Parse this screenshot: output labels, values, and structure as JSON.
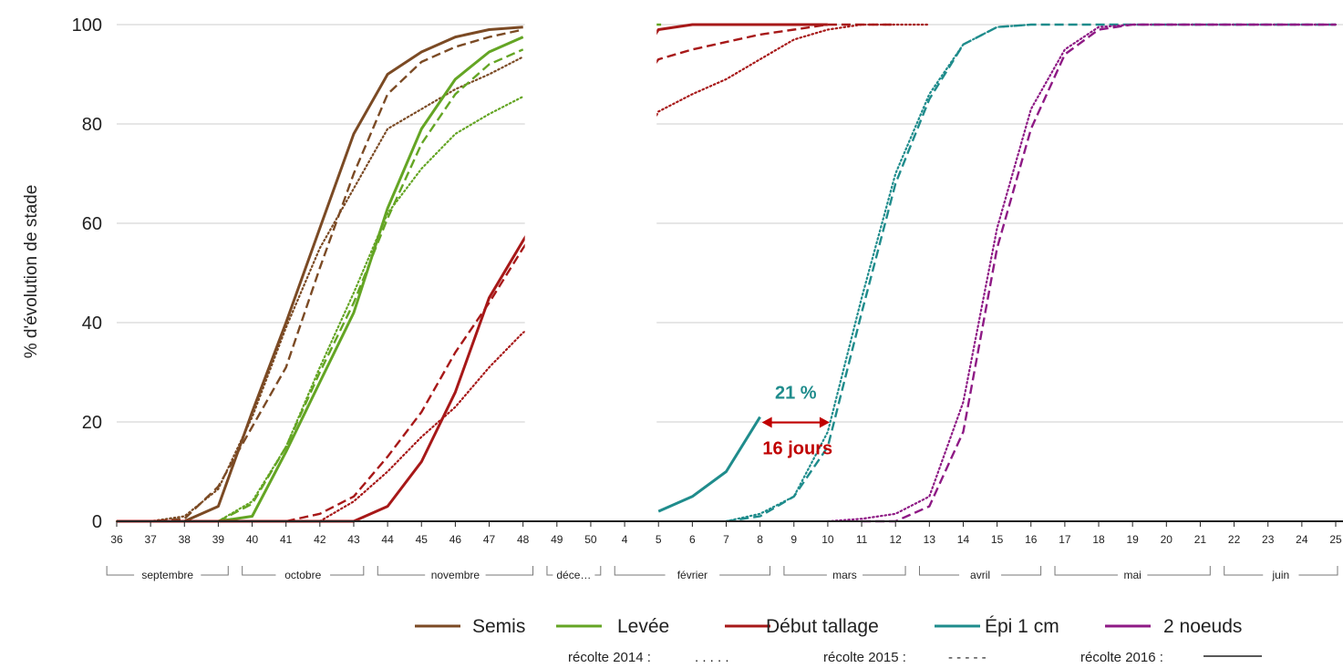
{
  "chart_data": {
    "type": "line",
    "title": "",
    "xlabel": "",
    "ylabel": "% d'évolution de stade",
    "ylim": [
      0,
      100
    ],
    "yticks": [
      0,
      20,
      40,
      60,
      80,
      100
    ],
    "grid": true,
    "x_axis_type": "week-of-year",
    "week_ticks": [
      "36",
      "37",
      "38",
      "39",
      "40",
      "41",
      "42",
      "43",
      "44",
      "45",
      "46",
      "47",
      "48",
      "49",
      "50",
      "4",
      "5",
      "6",
      "7",
      "8",
      "9",
      "10",
      "11",
      "12",
      "13",
      "14",
      "15",
      "16",
      "17",
      "18",
      "19",
      "20",
      "21",
      "22",
      "23",
      "24",
      "25"
    ],
    "months": [
      "septembre",
      "octobre",
      "novembre",
      "déce…",
      "février",
      "mars",
      "avril",
      "mai",
      "juin"
    ],
    "stage_colors": {
      "Semis": "#7b4a24",
      "Levée": "#64a524",
      "Début tallage": "#a71818",
      "Épi 1 cm": "#1f8c8c",
      "2 noeuds": "#8e1a85"
    },
    "year_styles": {
      "récolte 2014": "dotted",
      "récolte 2015": "dashed",
      "récolte 2016": "solid"
    },
    "legend": {
      "stages": [
        "Semis",
        "Levée",
        "Début tallage",
        "Épi 1 cm",
        "2 noeuds"
      ],
      "years": [
        {
          "label": "récolte 2014 :",
          "sample": ". . . . ."
        },
        {
          "label": "récolte 2015 :",
          "sample": "- - - - -"
        },
        {
          "label": "récolte 2016 :",
          "sample": ""
        }
      ],
      "placement": "bottom"
    },
    "series": [
      {
        "stage": "Semis",
        "year": "récolte 2016",
        "x": [
          "36",
          "37",
          "38",
          "39",
          "40",
          "41",
          "42",
          "43",
          "44",
          "45",
          "46",
          "47",
          "48"
        ],
        "y": [
          0,
          0,
          0,
          3,
          22,
          40,
          59,
          78,
          90,
          94.5,
          97.5,
          99,
          99.5
        ]
      },
      {
        "stage": "Semis",
        "year": "récolte 2015",
        "x": [
          "36",
          "37",
          "38",
          "39",
          "40",
          "41",
          "42",
          "43",
          "44",
          "45",
          "46",
          "47",
          "48"
        ],
        "y": [
          0,
          0,
          0.5,
          7,
          19,
          31,
          51,
          70,
          86,
          92.5,
          95.5,
          97.5,
          99
        ]
      },
      {
        "stage": "Semis",
        "year": "récolte 2014",
        "x": [
          "36",
          "37",
          "38",
          "39",
          "40",
          "41",
          "42",
          "43",
          "44",
          "45",
          "46",
          "47",
          "48"
        ],
        "y": [
          0,
          0,
          1,
          6.5,
          21,
          39,
          55,
          67,
          79,
          83,
          87,
          90,
          93.5
        ]
      },
      {
        "stage": "Levée",
        "year": "récolte 2016",
        "x": [
          "39",
          "40",
          "41",
          "42",
          "43",
          "44",
          "45",
          "46",
          "47",
          "48"
        ],
        "y": [
          0,
          1,
          14,
          28,
          42,
          63,
          79,
          89,
          94.5,
          97.5
        ]
      },
      {
        "stage": "Levée",
        "year": "récolte 2015",
        "x": [
          "39",
          "40",
          "41",
          "42",
          "43",
          "44",
          "45",
          "46",
          "47",
          "48"
        ],
        "y": [
          0,
          3.5,
          15,
          30,
          44,
          61,
          76,
          86,
          92,
          95
        ]
      },
      {
        "stage": "Levée",
        "year": "récolte 2014",
        "x": [
          "39",
          "40",
          "41",
          "42",
          "43",
          "44",
          "45",
          "46",
          "47",
          "48"
        ],
        "y": [
          0,
          4,
          15,
          31,
          46,
          62,
          71,
          78,
          82,
          85.5
        ]
      },
      {
        "stage": "Début tallage",
        "year": "récolte 2016",
        "x": [
          "36",
          "37",
          "38",
          "39",
          "40",
          "41",
          "42",
          "43",
          "44",
          "45",
          "46",
          "47",
          "48",
          "5",
          "6",
          "7",
          "8",
          "9",
          "10"
        ],
        "y": [
          0,
          0,
          0,
          0,
          0,
          0,
          0,
          0,
          3,
          12,
          26,
          45,
          56.5,
          99,
          100,
          100,
          100,
          100,
          100
        ]
      },
      {
        "stage": "Début tallage",
        "year": "récolte 2015",
        "x": [
          "41",
          "42",
          "43",
          "44",
          "45",
          "46",
          "47",
          "48",
          "5",
          "6",
          "7",
          "8",
          "9",
          "10",
          "11",
          "12"
        ],
        "y": [
          0,
          1.5,
          5,
          13,
          22,
          34,
          44,
          55,
          93,
          95,
          96.5,
          98,
          99,
          100,
          100,
          100
        ]
      },
      {
        "stage": "Début tallage",
        "year": "récolte 2014",
        "x": [
          "42",
          "43",
          "44",
          "45",
          "46",
          "47",
          "48",
          "49",
          "5",
          "6",
          "7",
          "8",
          "9",
          "10",
          "11",
          "12",
          "13"
        ],
        "y": [
          0,
          4,
          10,
          17,
          23,
          31,
          38,
          41,
          82.5,
          86,
          89,
          93,
          97,
          99,
          100,
          100,
          100
        ]
      },
      {
        "stage": "Épi 1 cm",
        "year": "récolte 2016",
        "x": [
          "5",
          "6",
          "7",
          "8"
        ],
        "y": [
          2,
          5,
          10,
          21
        ]
      },
      {
        "stage": "Épi 1 cm",
        "year": "récolte 2015",
        "x": [
          "7",
          "8",
          "9",
          "10",
          "11",
          "12",
          "13",
          "14",
          "15",
          "16",
          "17",
          "18",
          "19",
          "20",
          "21",
          "22",
          "23",
          "24",
          "25"
        ],
        "y": [
          0,
          1,
          5,
          15,
          42,
          68,
          85,
          96,
          99.5,
          100,
          100,
          100,
          100,
          100,
          100,
          100,
          100,
          100,
          100
        ]
      },
      {
        "stage": "Épi 1 cm",
        "year": "récolte 2014",
        "x": [
          "7",
          "8",
          "9",
          "10",
          "11",
          "12",
          "13",
          "14",
          "15",
          "16"
        ],
        "y": [
          0,
          1.5,
          5,
          18,
          45,
          70,
          86,
          96,
          99.5,
          100
        ]
      },
      {
        "stage": "2 noeuds",
        "year": "récolte 2015",
        "x": [
          "11",
          "12",
          "13",
          "14",
          "15",
          "16",
          "17",
          "18",
          "19",
          "20",
          "21",
          "22",
          "23",
          "24",
          "25"
        ],
        "y": [
          0,
          0,
          3,
          18,
          55,
          79,
          94,
          99,
          100,
          100,
          100,
          100,
          100,
          100,
          100
        ]
      },
      {
        "stage": "2 noeuds",
        "year": "récolte 2014",
        "x": [
          "10",
          "11",
          "12",
          "13",
          "14",
          "15",
          "16",
          "17",
          "18",
          "19",
          "20",
          "21",
          "22",
          "23",
          "24",
          "25"
        ],
        "y": [
          0,
          0.5,
          1.5,
          5,
          24,
          59,
          83,
          95,
          99.5,
          100,
          100,
          100,
          100,
          100,
          100,
          100
        ]
      }
    ],
    "annotations": [
      {
        "text": "21 %",
        "color": "#1f8c8c",
        "at_x": "8",
        "at_y": 21
      },
      {
        "text": "16 jours",
        "color": "#c00000",
        "from_x": "8",
        "to_x": "10",
        "at_y": 21
      }
    ]
  }
}
